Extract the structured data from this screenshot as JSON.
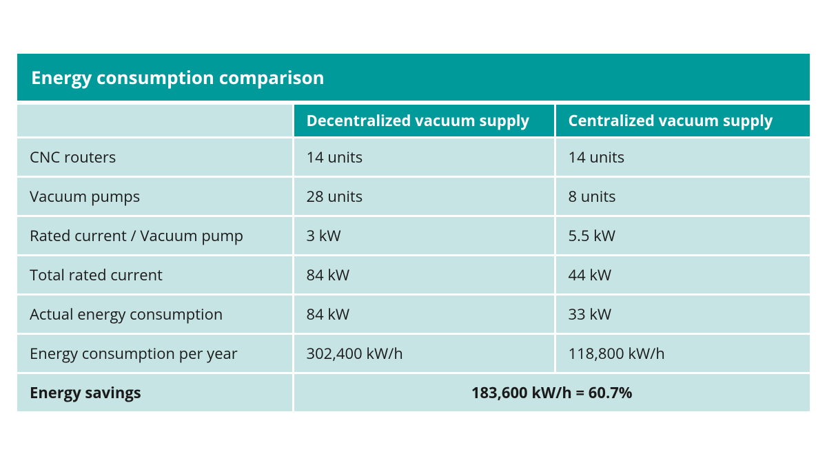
{
  "table": {
    "title": "Energy consumption comparison",
    "columns": {
      "decentralized": "Decentralized vacuum supply",
      "centralized": "Centralized vacuum supply"
    },
    "rows": [
      {
        "label": "CNC routers",
        "dec": "14 units",
        "cen": "14 units"
      },
      {
        "label": "Vacuum pumps",
        "dec": "28 units",
        "cen": "8 units"
      },
      {
        "label": "Rated current / Vacuum pump",
        "dec": "3 kW",
        "cen": "5.5 kW"
      },
      {
        "label": "Total rated current",
        "dec": "84 kW",
        "cen": "44 kW"
      },
      {
        "label": "Actual energy consumption",
        "dec": "84 kW",
        "cen": "33 kW"
      },
      {
        "label": "Energy consumption per year",
        "dec": "302,400 kW/h",
        "cen": "118,800 kW/h"
      }
    ],
    "savings": {
      "label": "Energy savings",
      "value": "183,600 kW/h = 60.7%"
    },
    "colors": {
      "header_bg": "#009a9a",
      "header_text": "#ffffff",
      "cell_bg": "#c7e4e4",
      "cell_text": "#1a1a1a",
      "border": "#ffffff"
    },
    "font": {
      "title_pt": 26,
      "header_pt": 22,
      "cell_pt": 22,
      "weight_bold": 700,
      "weight_regular": 400
    }
  }
}
